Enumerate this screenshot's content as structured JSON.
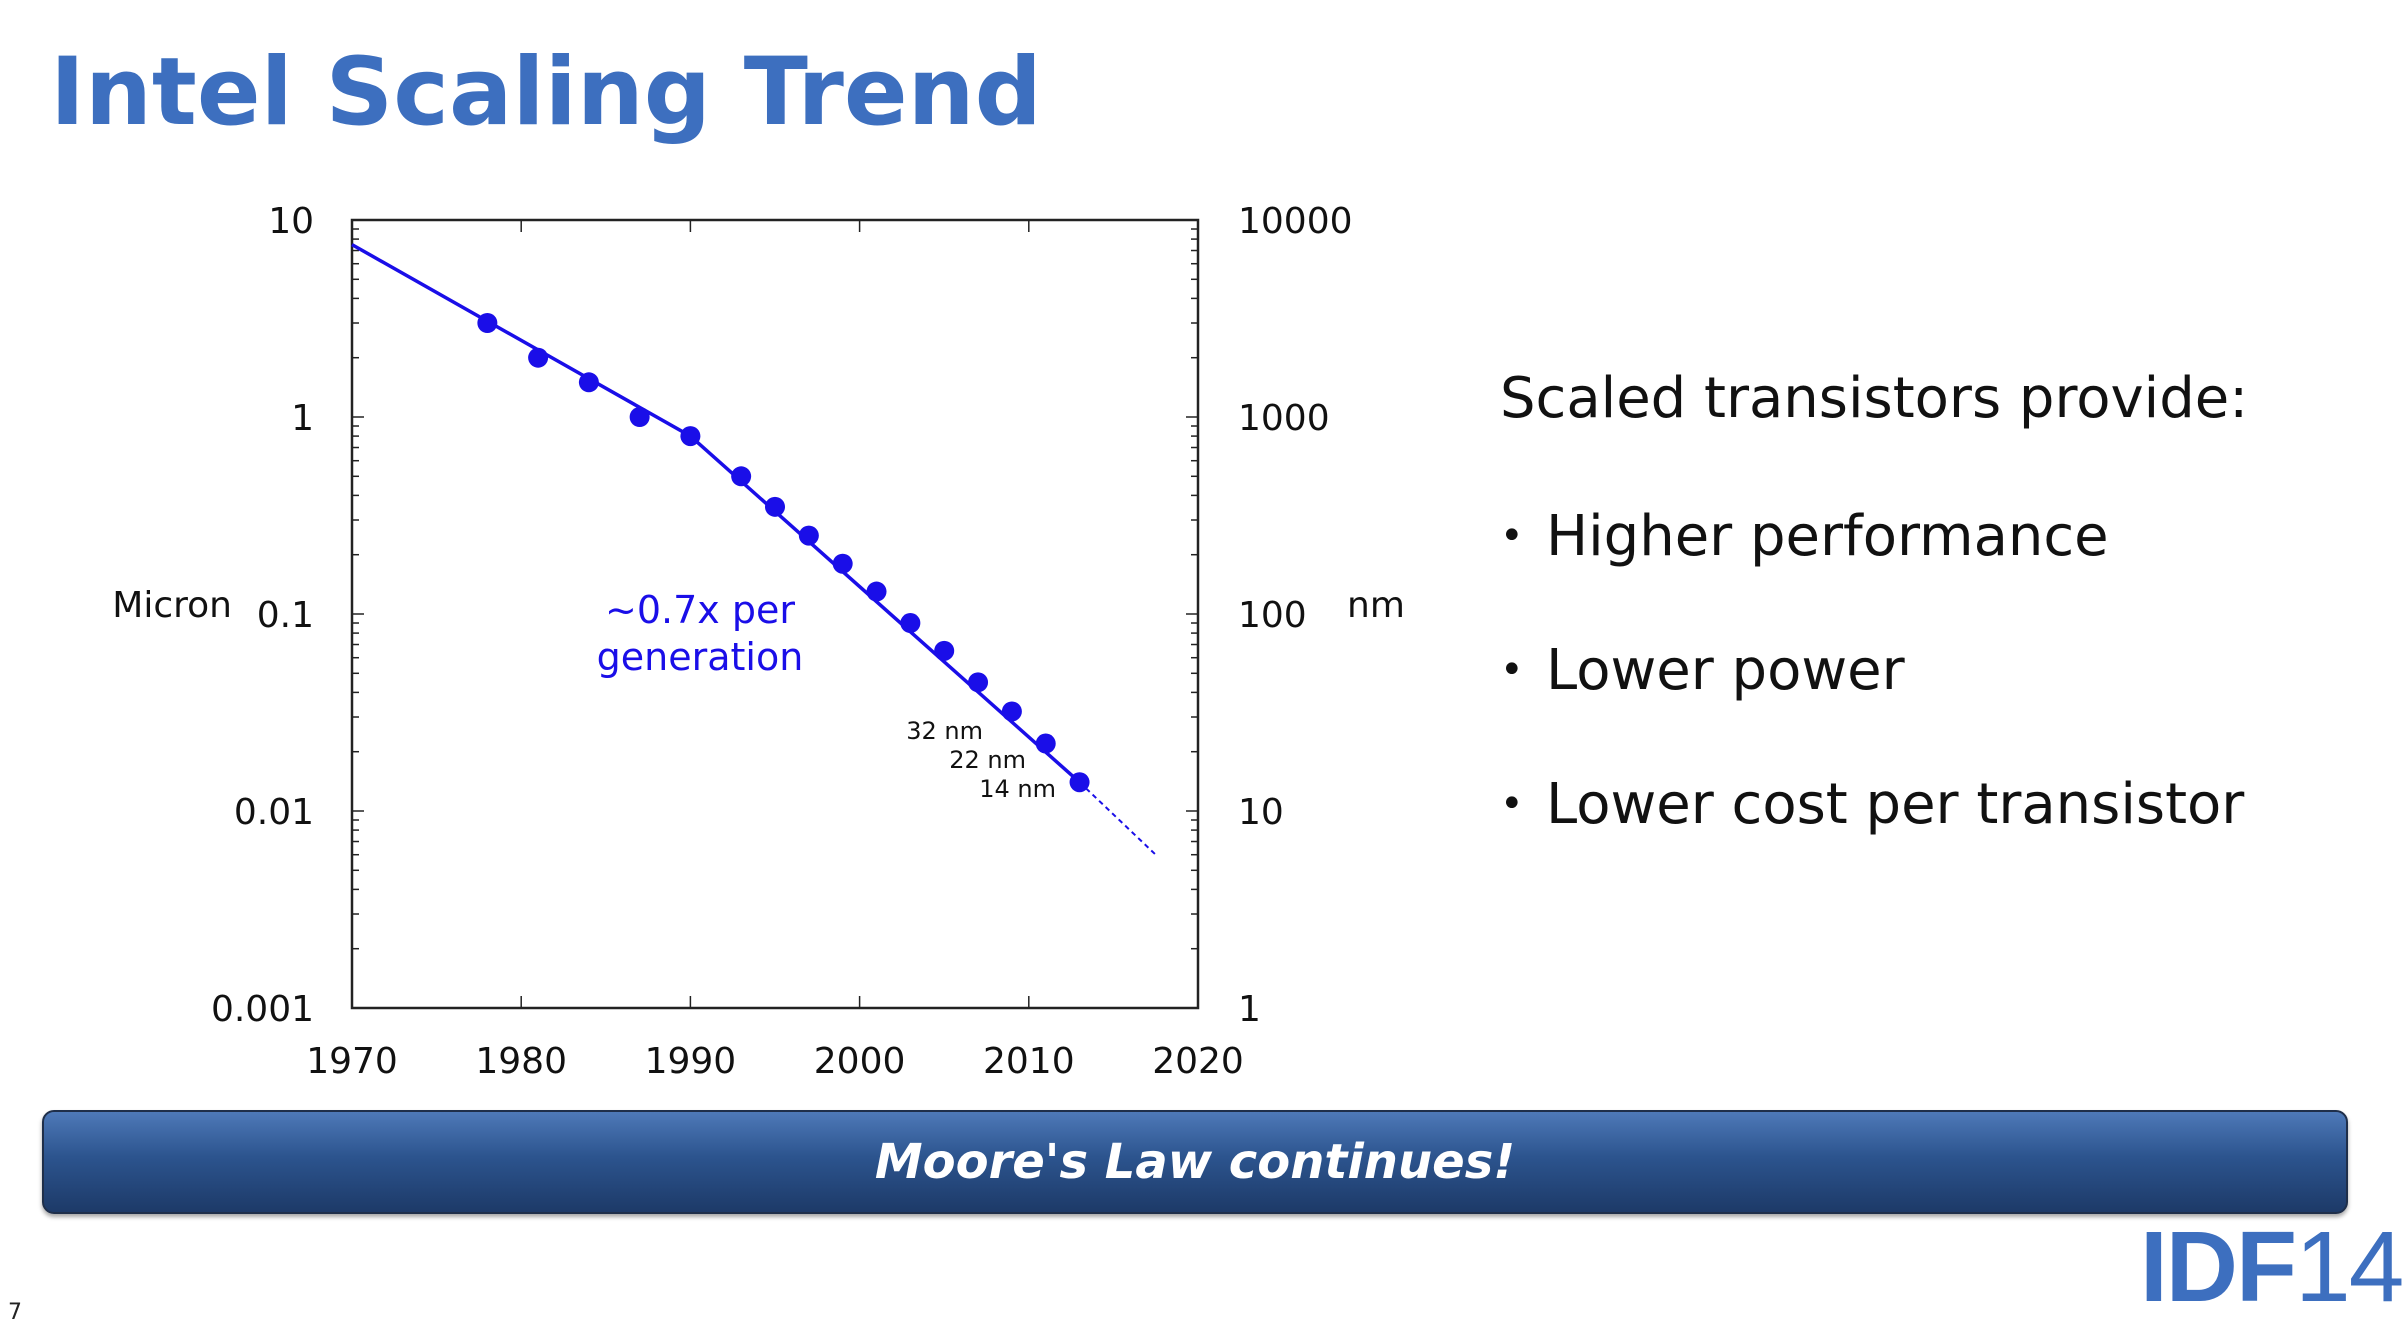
{
  "title": "Intel Scaling Trend",
  "chart_data": {
    "type": "scatter",
    "title": "",
    "x": [
      1978,
      1981,
      1984,
      1987,
      1990,
      1993,
      1995,
      1997,
      1999,
      2001,
      2003,
      2005,
      2007,
      2009,
      2011,
      2013
    ],
    "y": [
      3.0,
      2.0,
      1.5,
      1.0,
      0.8,
      0.5,
      0.35,
      0.25,
      0.18,
      0.13,
      0.09,
      0.065,
      0.045,
      0.032,
      0.022,
      0.014
    ],
    "trend": [
      {
        "x": 1970,
        "y": 7.5
      },
      {
        "x": 1990,
        "y": 0.8
      },
      {
        "x": 2013,
        "y": 0.014
      }
    ],
    "extrapolation": [
      {
        "x": 2013,
        "y": 0.014
      },
      {
        "x": 2017.5,
        "y": 0.006
      }
    ],
    "xlim": [
      1970,
      2020
    ],
    "ylim": [
      0.001,
      10
    ],
    "y_scale": "log",
    "xlabel": "",
    "ylabel": "Micron",
    "y2label": "nm",
    "x_ticks": [
      "1970",
      "1980",
      "1990",
      "2000",
      "2010",
      "2020"
    ],
    "y_ticks": [
      "10",
      "1",
      "0.1",
      "0.01",
      "0.001"
    ],
    "y2_ticks": [
      "10000",
      "1000",
      "100",
      "10",
      "1"
    ],
    "annotation": [
      "~0.7x per",
      "generation"
    ],
    "node_labels": [
      "32 nm",
      "22 nm",
      "14 nm"
    ],
    "colors": {
      "series": "#1a0ee8",
      "axis": "#222222"
    }
  },
  "bullets": {
    "heading": "Scaled transistors provide:",
    "items": [
      "Higher performance",
      "Lower power",
      "Lower cost per transistor"
    ]
  },
  "banner": "Moore's Law continues!",
  "page_number": "7",
  "logo": {
    "brand": "IDF",
    "year": "14"
  }
}
